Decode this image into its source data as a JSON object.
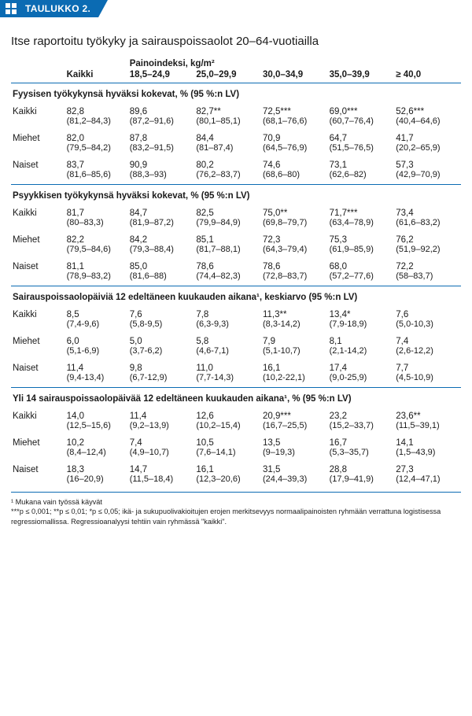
{
  "tab": {
    "label": "TAULUKKO 2."
  },
  "title": "Itse raportoitu työkyky ja sairauspoissaolot 20–64-vuotiailla",
  "superheader": "Painoindeksi, kg/m²",
  "columns": [
    "",
    "Kaikki",
    "18,5–24,9",
    "25,0–29,9",
    "30,0–34,9",
    "35,0–39,9",
    "≥ 40,0"
  ],
  "sections": [
    {
      "title": "Fyysisen työkykynsä hyväksi kokevat, % (95 %:n LV)",
      "rows": [
        {
          "label": "Kaikki",
          "vals": [
            "82,8",
            "89,6",
            "82,7**",
            "72,5***",
            "69,0***",
            "52,6***"
          ],
          "cis": [
            "(81,2–84,3)",
            "(87,2–91,6)",
            "(80,1–85,1)",
            "(68,1–76,6)",
            "(60,7–76,4)",
            "(40,4–64,6)"
          ]
        },
        {
          "label": "Miehet",
          "vals": [
            "82,0",
            "87,8",
            "84,4",
            "70,9",
            "64,7",
            "41,7"
          ],
          "cis": [
            "(79,5–84,2)",
            "(83,2–91,5)",
            "(81–87,4)",
            " (64,5–76,9)",
            "(51,5–76,5)",
            "(20,2–65,9)"
          ]
        },
        {
          "label": "Naiset",
          "vals": [
            "83,7",
            "90,9",
            "80,2",
            "74,6",
            "73,1",
            "57,3"
          ],
          "cis": [
            "(81,6–85,6)",
            " (88,3–93)",
            "(76,2–83,7)",
            "(68,6–80)",
            "(62,6–82)",
            "(42,9–70,9)"
          ]
        }
      ]
    },
    {
      "title": "Psyykkisen työkykynsä hyväksi kokevat, % (95 %:n LV)",
      "rows": [
        {
          "label": "Kaikki",
          "vals": [
            "81,7",
            "84,7",
            "82,5",
            "75,0**",
            "71,7***",
            "73,4"
          ],
          "cis": [
            "(80–83,3)",
            "(81,9–87,2)",
            "(79,9–84,9)",
            "(69,8–79,7)",
            "(63,4–78,9)",
            "(61,6–83,2)"
          ]
        },
        {
          "label": "Miehet",
          "vals": [
            "82,2",
            "84,2",
            "85,1",
            "72,3",
            "75,3",
            "76,2"
          ],
          "cis": [
            "(79,5–84,6)",
            "(79,3–88,4)",
            "(81,7–88,1)",
            " (64,3–79,4)",
            "(61,9–85,9)",
            "(51,9–92,2)"
          ]
        },
        {
          "label": "Naiset",
          "vals": [
            "81,1",
            "85,0",
            "78,6",
            "78,6",
            "68,0",
            "72,2"
          ],
          "cis": [
            "(78,9–83,2)",
            " (81,6–88)",
            "(74,4–82,3)",
            "(72,8–83,7)",
            "(57,2–77,6)",
            "(58–83,7)"
          ]
        }
      ]
    },
    {
      "title": "Sairauspoissaolopäiviä 12 edeltäneen kuukauden aikana¹, keskiarvo (95 %:n LV)",
      "rows": [
        {
          "label": "Kaikki",
          "vals": [
            "8,5",
            "7,6",
            "7,8",
            "11,3**",
            "13,4*",
            "7,6"
          ],
          "cis": [
            "(7,4-9,6)",
            "(5,8-9,5)",
            "(6,3-9,3)",
            "(8,3-14,2)",
            "(7,9-18,9)",
            "(5,0-10,3)"
          ]
        },
        {
          "label": "Miehet",
          "vals": [
            "6,0",
            "5,0",
            "5,8",
            "7,9",
            "8,1",
            "7,4"
          ],
          "cis": [
            "(5,1-6,9)",
            "(3,7-6,2)",
            "(4,6-7,1)",
            "(5,1-10,7)",
            "(2,1-14,2)",
            "(2,6-12,2)"
          ]
        },
        {
          "label": "Naiset",
          "vals": [
            "11,4",
            "9,8",
            "11,0",
            "16,1",
            "17,4",
            "7,7"
          ],
          "cis": [
            "(9,4-13,4)",
            "(6,7-12,9)",
            "(7,7-14,3)",
            "(10,2-22,1)",
            "(9,0-25,9)",
            "(4,5-10,9)"
          ]
        }
      ]
    },
    {
      "title": "Yli 14 sairauspoissaolopäivää 12 edeltäneen kuukauden aikana¹, % (95 %:n LV)",
      "rows": [
        {
          "label": "Kaikki",
          "vals": [
            "14,0",
            "11,4",
            "12,6",
            "20,9***",
            "23,2",
            "23,6**"
          ],
          "cis": [
            "(12,5–15,6)",
            "(9,2–13,9)",
            "(10,2–15,4)",
            "(16,7–25,5)",
            "(15,2–33,7)",
            "(11,5–39,1)"
          ]
        },
        {
          "label": "Miehet",
          "vals": [
            "10,2",
            "7,4",
            "10,5",
            "13,5",
            "16,7",
            "14,1"
          ],
          "cis": [
            "(8,4–12,4)",
            " (4,9–10,7)",
            "(7,6–14,1)",
            " (9–19,3)",
            " (5,3–35,7)",
            " (1,5–43,9)"
          ]
        },
        {
          "label": "Naiset",
          "vals": [
            "18,3",
            "14,7",
            "16,1",
            "31,5",
            "28,8",
            "27,3"
          ],
          "cis": [
            "(16–20,9)",
            "(11,5–18,4)",
            "(12,3–20,6)",
            "(24,4–39,3)",
            "(17,9–41,9)",
            "(12,4–47,1)"
          ]
        }
      ]
    }
  ],
  "footnote1": "¹ Mukana vain työssä käyvät",
  "footnote2": "***p ≤ 0,001; **p ≤ 0,01; *p ≤ 0,05;  ikä- ja sukupuolivakioitujen erojen merkitsevyys normaalipainoisten ryhmään verrattuna logistisessa regressiomallissa. Regressioanalyysi tehtiin vain ryhmässä \"kaikki\"."
}
